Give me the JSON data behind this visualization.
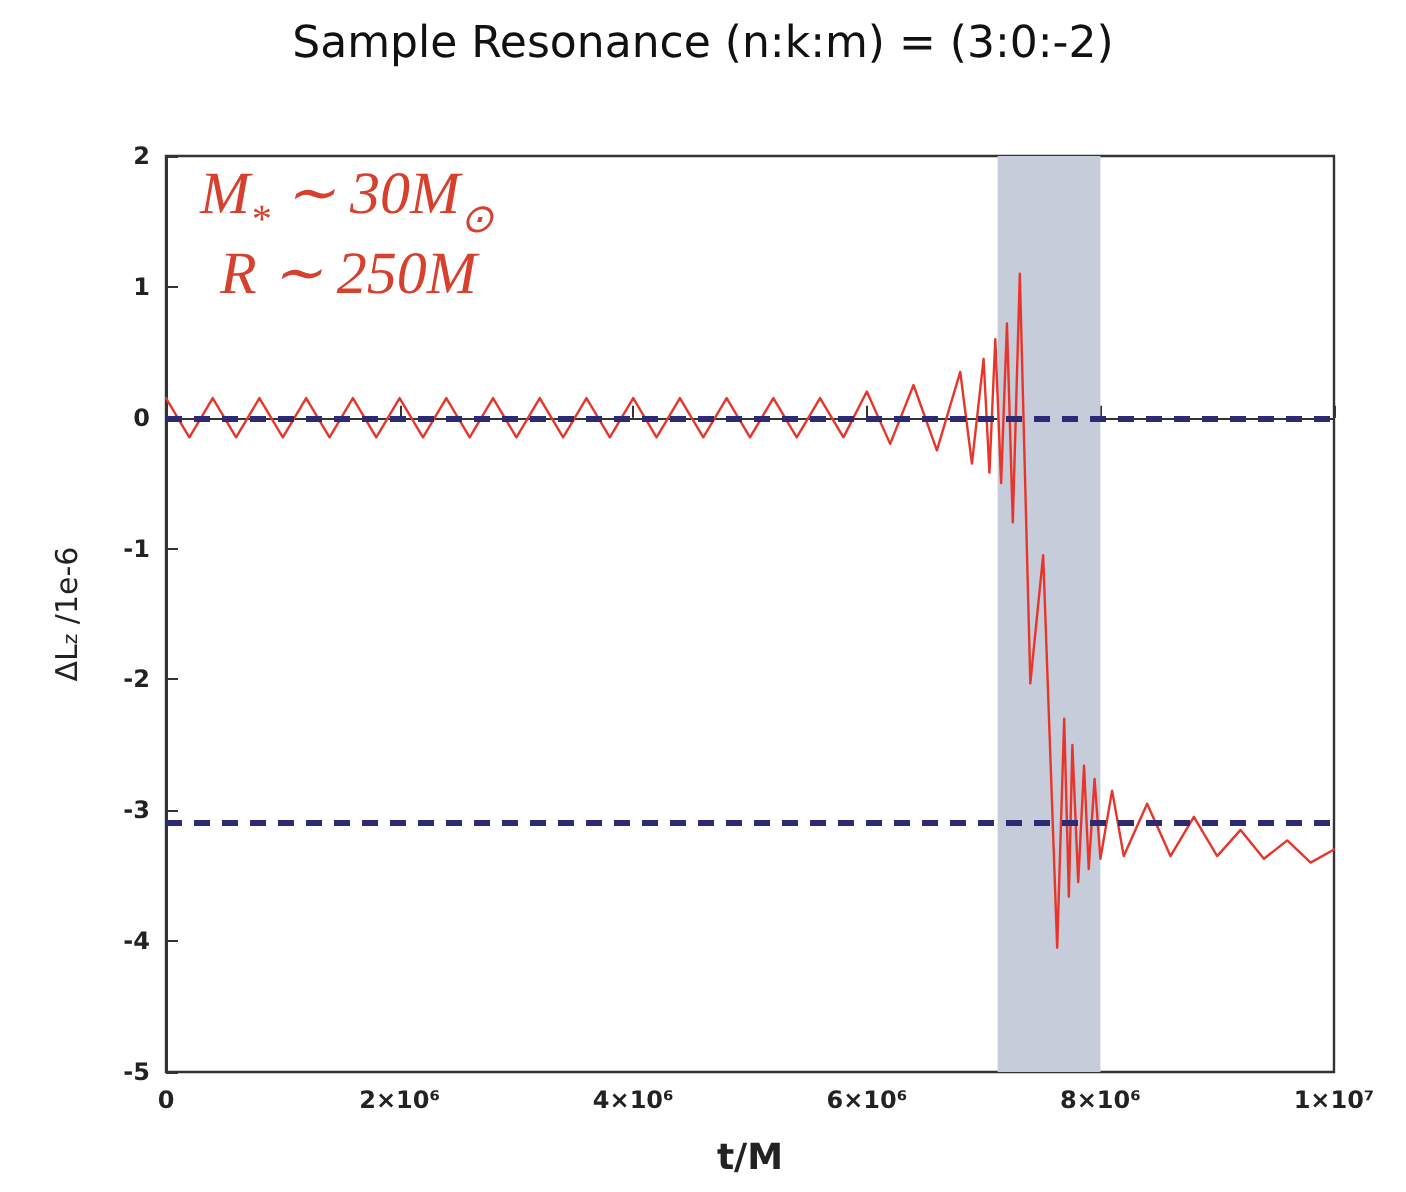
{
  "chart_data": {
    "type": "line",
    "title": "Sample Resonance (n:k:m) = (3:0:-2)",
    "xlabel": "t/M",
    "ylabel": "ΔL$_{z}$ /1e-6",
    "annotations": [
      "M$_{*}$ ∼ 30M$_{⊙}$",
      "R ∼ 250M"
    ],
    "x": [
      0,
      200000,
      400000,
      600000,
      800000,
      1000000,
      1200000,
      1400000,
      1600000,
      1800000,
      2000000,
      2200000,
      2400000,
      2600000,
      2800000,
      3000000,
      3200000,
      3400000,
      3600000,
      3800000,
      4000000,
      4200000,
      4400000,
      4600000,
      4800000,
      5000000,
      5200000,
      5400000,
      5600000,
      5800000,
      6000000,
      6200000,
      6400000,
      6600000,
      6800000,
      6900000,
      7000000,
      7050000,
      7100000,
      7150000,
      7200000,
      7250000,
      7310000,
      7400000,
      7510000,
      7630000,
      7690000,
      7730000,
      7760000,
      7810000,
      7860000,
      7900000,
      7950000,
      8000000,
      8100000,
      8200000,
      8400000,
      8600000,
      8800000,
      9000000,
      9200000,
      9400000,
      9600000,
      9800000,
      10000000
    ],
    "series": [
      {
        "color": "#e8352a",
        "values": [
          0.15,
          -0.15,
          0.15,
          -0.15,
          0.15,
          -0.15,
          0.15,
          -0.15,
          0.15,
          -0.15,
          0.15,
          -0.15,
          0.15,
          -0.15,
          0.15,
          -0.15,
          0.15,
          -0.15,
          0.15,
          -0.15,
          0.15,
          -0.15,
          0.15,
          -0.15,
          0.15,
          -0.15,
          0.15,
          -0.15,
          0.15,
          -0.15,
          0.2,
          -0.2,
          0.25,
          -0.25,
          0.35,
          -0.35,
          0.45,
          -0.42,
          0.6,
          -0.5,
          0.72,
          -0.8,
          1.1,
          -2.03,
          -1.05,
          -4.05,
          -2.3,
          -3.66,
          -2.5,
          -3.55,
          -2.66,
          -3.45,
          -2.76,
          -3.37,
          -2.85,
          -3.35,
          -2.95,
          -3.35,
          -3.05,
          -3.35,
          -3.15,
          -3.37,
          -3.23,
          -3.4,
          -3.3
        ]
      }
    ],
    "xlim": [
      0,
      10000000
    ],
    "xticks": [
      0,
      {
        "value": 2000000,
        "label": "2×10⁶"
      },
      {
        "value": 4000000,
        "label": "4×10⁶"
      },
      {
        "value": 6000000,
        "label": "6×10⁶"
      },
      {
        "value": 8000000,
        "label": "8×10⁶"
      },
      {
        "value": 10000000,
        "label": "1×10⁷"
      }
    ],
    "ylim": [
      -5,
      2
    ],
    "yticks": [
      -5,
      -4,
      -3,
      -2,
      -1,
      0,
      1,
      2
    ],
    "ref_lines": [
      {
        "axis": "y",
        "value": 0,
        "color": "#2b2a72",
        "line_style": "dashed"
      },
      {
        "axis": "y",
        "value": -3.1,
        "color": "#2b2a72",
        "line_style": "dashed"
      }
    ],
    "bands": [
      {
        "axis": "x",
        "from": 7120000,
        "to": 8000000,
        "color": "#c6ccda"
      }
    ],
    "grid": false,
    "marker": "none",
    "line_style": "solid"
  }
}
